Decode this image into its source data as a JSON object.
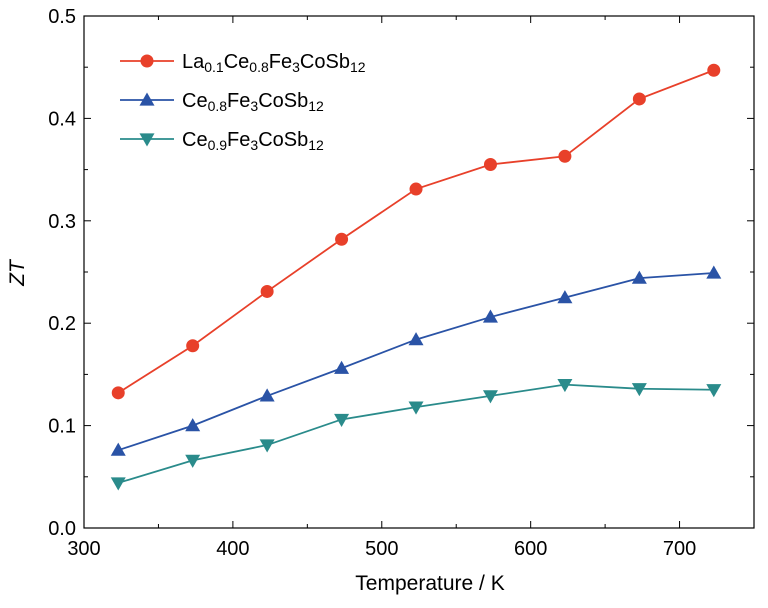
{
  "chart_data": {
    "type": "line",
    "title": "",
    "xlabel": "Temperature / K",
    "ylabel": "ZT",
    "xlim": [
      300,
      750
    ],
    "ylim": [
      0.0,
      0.5
    ],
    "x_ticks": [
      300,
      400,
      500,
      600,
      700
    ],
    "y_ticks": [
      0.0,
      0.1,
      0.2,
      0.3,
      0.4,
      0.5
    ],
    "x_tick_labels": [
      "300",
      "400",
      "500",
      "600",
      "700"
    ],
    "y_tick_labels": [
      "0.0",
      "0.1",
      "0.2",
      "0.3",
      "0.4",
      "0.5"
    ],
    "grid": false,
    "legend_position": "top-left",
    "x": [
      323,
      373,
      423,
      473,
      523,
      573,
      623,
      673,
      723
    ],
    "series": [
      {
        "name": "La0.1Ce0.8Fe3CoSb12",
        "label_parts": [
          {
            "t": "La",
            "sub": false
          },
          {
            "t": "0.1",
            "sub": true
          },
          {
            "t": "Ce",
            "sub": false
          },
          {
            "t": "0.8",
            "sub": true
          },
          {
            "t": "Fe",
            "sub": false
          },
          {
            "t": "3",
            "sub": true
          },
          {
            "t": "CoSb",
            "sub": false
          },
          {
            "t": "12",
            "sub": true
          }
        ],
        "marker": "circle",
        "color": "#e8402a",
        "values": [
          0.132,
          0.178,
          0.231,
          0.282,
          0.331,
          0.355,
          0.363,
          0.419,
          0.447
        ]
      },
      {
        "name": "Ce0.8Fe3CoSb12",
        "label_parts": [
          {
            "t": "Ce",
            "sub": false
          },
          {
            "t": "0.8",
            "sub": true
          },
          {
            "t": "Fe",
            "sub": false
          },
          {
            "t": "3",
            "sub": true
          },
          {
            "t": "CoSb",
            "sub": false
          },
          {
            "t": "12",
            "sub": true
          }
        ],
        "marker": "triangle-up",
        "color": "#2a53a6",
        "values": [
          0.076,
          0.1,
          0.129,
          0.156,
          0.184,
          0.206,
          0.225,
          0.244,
          0.249
        ]
      },
      {
        "name": "Ce0.9Fe3CoSb12",
        "label_parts": [
          {
            "t": "Ce",
            "sub": false
          },
          {
            "t": "0.9",
            "sub": true
          },
          {
            "t": "Fe",
            "sub": false
          },
          {
            "t": "3",
            "sub": true
          },
          {
            "t": "CoSb",
            "sub": false
          },
          {
            "t": "12",
            "sub": true
          }
        ],
        "marker": "triangle-down",
        "color": "#2a8b8b",
        "values": [
          0.044,
          0.066,
          0.081,
          0.106,
          0.118,
          0.129,
          0.14,
          0.136,
          0.135
        ]
      }
    ]
  }
}
